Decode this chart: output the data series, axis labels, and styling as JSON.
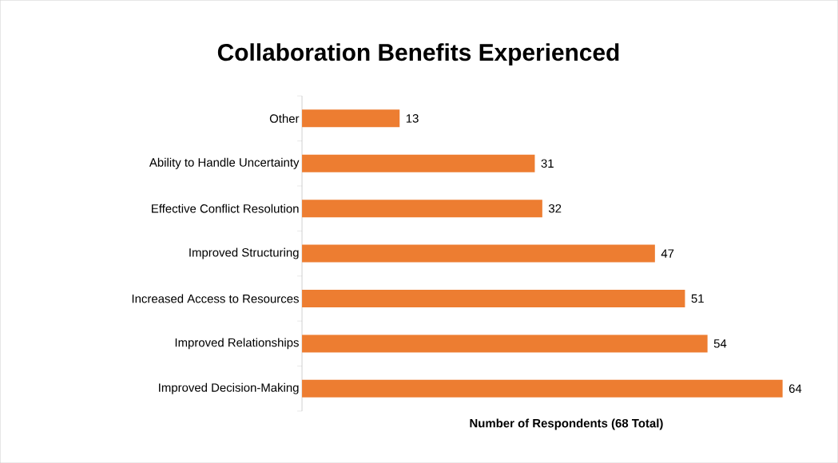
{
  "chart_data": {
    "type": "bar",
    "orientation": "horizontal",
    "title": "Collaboration Benefits Experienced",
    "xlabel": "Number of Respondents (68 Total)",
    "categories": [
      "Other",
      "Ability to Handle Uncertainty",
      "Effective Conflict Resolution",
      "Improved Structuring",
      "Increased Access to Resources",
      "Improved Relationships",
      "Improved Decision-Making"
    ],
    "values": [
      13,
      31,
      32,
      47,
      51,
      54,
      64
    ],
    "color": "#ed7d31",
    "data_labels": true
  }
}
